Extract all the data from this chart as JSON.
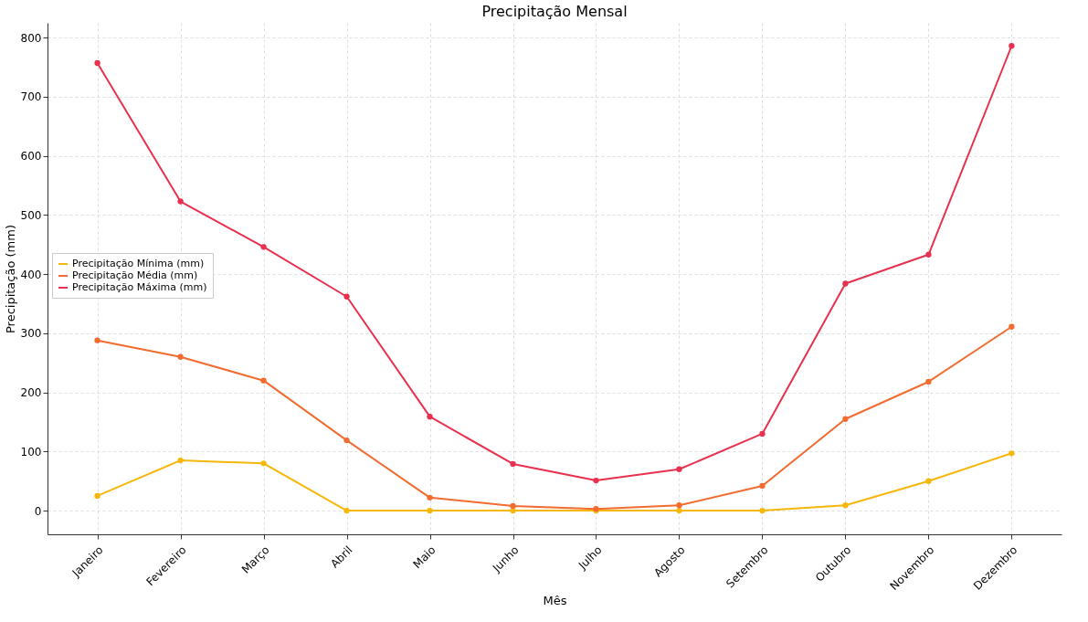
{
  "chart_data": {
    "type": "line",
    "title": "Precipitação Mensal",
    "xlabel": "Mês",
    "ylabel": "Precipitação (mm)",
    "categories": [
      "Janeiro",
      "Fevereiro",
      "Março",
      "Abril",
      "Maio",
      "Junho",
      "Julho",
      "Agosto",
      "Setembro",
      "Outubro",
      "Novembro",
      "Dezembro"
    ],
    "series": [
      {
        "name": "Precipitação Mínima (mm)",
        "color": "#f5b70a",
        "values": [
          25,
          85,
          80,
          0,
          0,
          0,
          0,
          0,
          0,
          9,
          50,
          97
        ]
      },
      {
        "name": "Precipitação Média (mm)",
        "color": "#f26b2f",
        "values": [
          288,
          260,
          220,
          119,
          22,
          8,
          3,
          9,
          42,
          155,
          218,
          311
        ]
      },
      {
        "name": "Precipitação Máxima (mm)",
        "color": "#e8304f",
        "values": [
          757,
          523,
          446,
          362,
          159,
          79,
          51,
          70,
          130,
          384,
          433,
          786
        ]
      }
    ],
    "ylim": [
      -40,
      825
    ],
    "yticks": [
      0,
      100,
      200,
      300,
      400,
      500,
      600,
      700,
      800
    ],
    "grid": true,
    "legend": "left",
    "marker": "circle",
    "line_style": "solid"
  }
}
